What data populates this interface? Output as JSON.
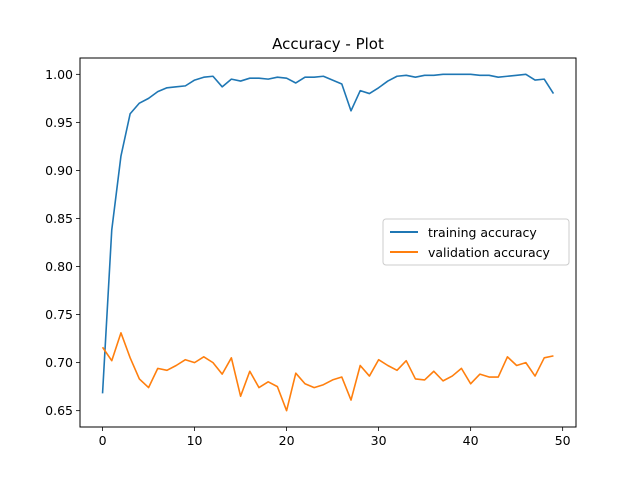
{
  "chart_data": {
    "type": "line",
    "title": "Accuracy - Plot",
    "xlabel": "",
    "ylabel": "",
    "xlim": [
      -2.45,
      51.45
    ],
    "ylim": [
      0.633,
      1.017
    ],
    "xticks": [
      0,
      10,
      20,
      30,
      40,
      50
    ],
    "yticks": [
      0.65,
      0.7,
      0.75,
      0.8,
      0.85,
      0.9,
      0.95,
      1.0
    ],
    "ytick_labels": [
      "0.65",
      "0.70",
      "0.75",
      "0.80",
      "0.85",
      "0.90",
      "0.95",
      "1.00"
    ],
    "grid": false,
    "legend_position": "center-right",
    "x": [
      0,
      1,
      2,
      3,
      4,
      5,
      6,
      7,
      8,
      9,
      10,
      11,
      12,
      13,
      14,
      15,
      16,
      17,
      18,
      19,
      20,
      21,
      22,
      23,
      24,
      25,
      26,
      27,
      28,
      29,
      30,
      31,
      32,
      33,
      34,
      35,
      36,
      37,
      38,
      39,
      40,
      41,
      42,
      43,
      44,
      45,
      46,
      47,
      48,
      49
    ],
    "series": [
      {
        "name": "training accuracy",
        "color": "#1f77b4",
        "values": [
          0.668,
          0.838,
          0.915,
          0.959,
          0.97,
          0.975,
          0.982,
          0.986,
          0.987,
          0.988,
          0.994,
          0.997,
          0.998,
          0.987,
          0.995,
          0.993,
          0.996,
          0.996,
          0.995,
          0.997,
          0.996,
          0.991,
          0.997,
          0.997,
          0.998,
          0.994,
          0.99,
          0.962,
          0.983,
          0.98,
          0.986,
          0.993,
          0.998,
          0.999,
          0.997,
          0.999,
          0.999,
          1.0,
          1.0,
          1.0,
          1.0,
          0.999,
          0.999,
          0.997,
          0.998,
          0.999,
          1.0,
          0.994,
          0.995,
          0.98
        ]
      },
      {
        "name": "validation accuracy",
        "color": "#ff7f0e",
        "values": [
          0.716,
          0.702,
          0.731,
          0.705,
          0.683,
          0.674,
          0.694,
          0.692,
          0.697,
          0.703,
          0.7,
          0.706,
          0.7,
          0.688,
          0.705,
          0.665,
          0.691,
          0.674,
          0.68,
          0.675,
          0.65,
          0.689,
          0.678,
          0.674,
          0.677,
          0.682,
          0.685,
          0.661,
          0.697,
          0.686,
          0.703,
          0.697,
          0.692,
          0.702,
          0.683,
          0.682,
          0.691,
          0.681,
          0.686,
          0.694,
          0.678,
          0.688,
          0.685,
          0.685,
          0.706,
          0.697,
          0.7,
          0.686,
          0.705,
          0.707
        ]
      }
    ]
  }
}
